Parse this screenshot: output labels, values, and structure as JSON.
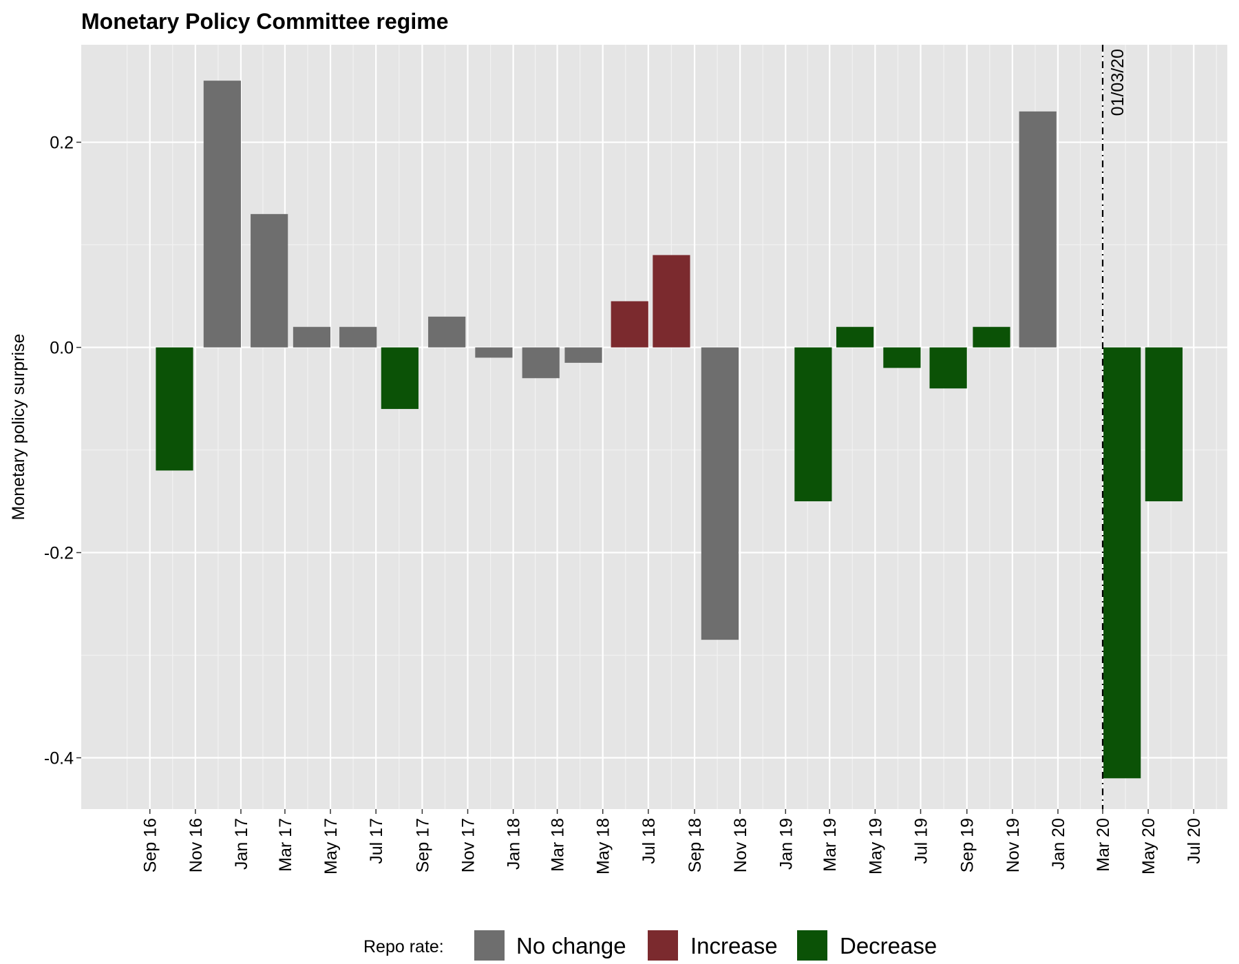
{
  "chart_data": {
    "type": "bar",
    "title": "Monetary Policy Committee regime",
    "xlabel": "",
    "ylabel": "Monetary policy surprise",
    "ylim": [
      -0.45,
      0.295
    ],
    "grid": true,
    "legend_position": "bottom",
    "y_ticks": [
      {
        "value": 0.2,
        "label": "0.2"
      },
      {
        "value": 0.0,
        "label": "0.0"
      },
      {
        "value": -0.2,
        "label": "-0.2"
      },
      {
        "value": -0.4,
        "label": "-0.4"
      }
    ],
    "x_ticks": [
      "Sep 16",
      "Nov 16",
      "Jan 17",
      "Mar 17",
      "May 17",
      "Jul 17",
      "Sep 17",
      "Nov 17",
      "Jan 18",
      "Mar 18",
      "May 18",
      "Jul 18",
      "Sep 18",
      "Nov 18",
      "Jan 19",
      "Mar 19",
      "May 19",
      "Jul 19",
      "Sep 19",
      "Nov 19",
      "Jan 20",
      "Mar 20",
      "May 20",
      "Jul 20"
    ],
    "legend": {
      "title": "Repo rate:",
      "items": [
        {
          "key": "nochange",
          "label": "No change",
          "color": "#6e6e6e"
        },
        {
          "key": "increase",
          "label": "Increase",
          "color": "#7b2a2e"
        },
        {
          "key": "decrease",
          "label": "Decrease",
          "color": "#0b5206"
        }
      ]
    },
    "series": [
      {
        "date": "2016-10-04",
        "value": -0.12,
        "repo": "decrease"
      },
      {
        "date": "2016-12-07",
        "value": 0.26,
        "repo": "nochange"
      },
      {
        "date": "2017-02-08",
        "value": 0.13,
        "repo": "nochange"
      },
      {
        "date": "2017-04-06",
        "value": 0.02,
        "repo": "nochange"
      },
      {
        "date": "2017-06-07",
        "value": 0.02,
        "repo": "nochange"
      },
      {
        "date": "2017-08-02",
        "value": -0.06,
        "repo": "decrease"
      },
      {
        "date": "2017-10-04",
        "value": 0.03,
        "repo": "nochange"
      },
      {
        "date": "2017-12-06",
        "value": -0.01,
        "repo": "nochange"
      },
      {
        "date": "2018-02-07",
        "value": -0.03,
        "repo": "nochange"
      },
      {
        "date": "2018-04-05",
        "value": -0.015,
        "repo": "nochange"
      },
      {
        "date": "2018-06-06",
        "value": 0.045,
        "repo": "increase"
      },
      {
        "date": "2018-08-01",
        "value": 0.09,
        "repo": "increase"
      },
      {
        "date": "2018-10-05",
        "value": -0.285,
        "repo": "nochange"
      },
      {
        "date": "2019-02-07",
        "value": -0.15,
        "repo": "decrease"
      },
      {
        "date": "2019-04-04",
        "value": 0.02,
        "repo": "decrease"
      },
      {
        "date": "2019-06-06",
        "value": -0.02,
        "repo": "decrease"
      },
      {
        "date": "2019-08-07",
        "value": -0.04,
        "repo": "decrease"
      },
      {
        "date": "2019-10-04",
        "value": 0.02,
        "repo": "decrease"
      },
      {
        "date": "2019-12-05",
        "value": 0.23,
        "repo": "nochange"
      },
      {
        "date": "2020-03-27",
        "value": -0.42,
        "repo": "decrease"
      },
      {
        "date": "2020-05-22",
        "value": -0.15,
        "repo": "decrease"
      }
    ],
    "annotations": [
      {
        "type": "vline",
        "date": "2020-03-01",
        "label": "01/03/20",
        "style": "dotdash"
      }
    ]
  }
}
